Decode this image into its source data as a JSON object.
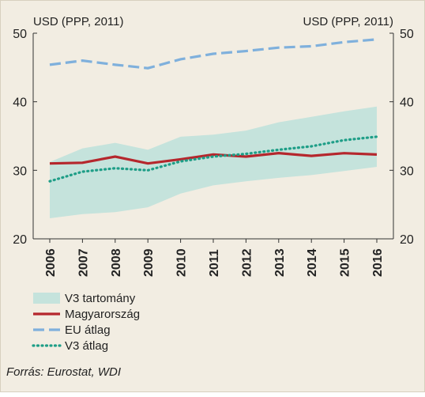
{
  "chart_data": {
    "type": "line",
    "unit_left": "USD (PPP, 2011)",
    "unit_right": "USD (PPP, 2011)",
    "x": [
      "2006",
      "2007",
      "2008",
      "2009",
      "2010",
      "2011",
      "2012",
      "2013",
      "2014",
      "2015",
      "2016"
    ],
    "ylim": [
      20,
      50
    ],
    "yticks": [
      20,
      30,
      40,
      50
    ],
    "band": {
      "name": "V3 tartomány",
      "color": "#c5e3dc",
      "lower": [
        23.0,
        23.6,
        23.9,
        24.6,
        26.6,
        27.8,
        28.4,
        28.9,
        29.3,
        29.9,
        30.5
      ],
      "upper": [
        31.2,
        33.2,
        34.0,
        33.0,
        34.9,
        35.2,
        35.8,
        37.0,
        37.8,
        38.6,
        39.3
      ]
    },
    "series": [
      {
        "name": "Magyarország",
        "color": "#b5272d",
        "style": "solid",
        "values": [
          31.0,
          31.1,
          32.0,
          31.0,
          31.6,
          32.3,
          32.0,
          32.5,
          32.1,
          32.5,
          32.3
        ]
      },
      {
        "name": "EU átlag",
        "color": "#7fb0dc",
        "style": "dashed",
        "values": [
          45.4,
          46.0,
          45.4,
          44.9,
          46.2,
          47.0,
          47.4,
          47.9,
          48.1,
          48.7,
          49.1
        ]
      },
      {
        "name": "V3 átlag",
        "color": "#1e9e87",
        "style": "dotted",
        "values": [
          28.4,
          29.8,
          30.3,
          30.0,
          31.3,
          32.0,
          32.4,
          33.0,
          33.5,
          34.4,
          34.9
        ]
      }
    ],
    "grid": false,
    "legend_position": "bottom-left"
  },
  "source": "Forrás: Eurostat, WDI"
}
